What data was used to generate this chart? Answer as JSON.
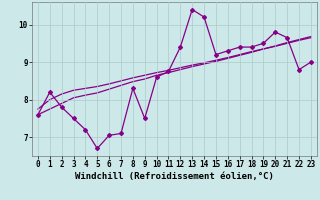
{
  "xlabel": "Windchill (Refroidissement éolien,°C)",
  "bg_color": "#cce8e8",
  "line_color": "#880088",
  "grid_color": "#aacccc",
  "xlim": [
    -0.5,
    23.5
  ],
  "ylim": [
    6.5,
    10.6
  ],
  "xticks": [
    0,
    1,
    2,
    3,
    4,
    5,
    6,
    7,
    8,
    9,
    10,
    11,
    12,
    13,
    14,
    15,
    16,
    17,
    18,
    19,
    20,
    21,
    22,
    23
  ],
  "yticks": [
    7,
    8,
    9,
    10
  ],
  "line1_x": [
    0,
    1,
    2,
    3,
    4,
    5,
    6,
    7,
    8,
    9,
    10,
    11,
    12,
    13,
    14,
    15,
    16,
    17,
    18,
    19,
    20,
    21,
    22,
    23
  ],
  "line1_y": [
    7.6,
    8.2,
    7.8,
    7.5,
    7.2,
    6.7,
    7.05,
    7.1,
    8.3,
    7.5,
    8.6,
    8.75,
    9.4,
    10.4,
    10.2,
    9.2,
    9.3,
    9.4,
    9.4,
    9.5,
    9.8,
    9.65,
    8.8,
    9.0
  ],
  "line2_x": [
    0,
    1,
    2,
    3,
    4,
    5,
    6,
    7,
    8,
    9,
    10,
    11,
    12,
    13,
    14,
    15,
    16,
    17,
    18,
    19,
    20,
    21,
    22,
    23
  ],
  "line2_y": [
    7.75,
    8.0,
    8.15,
    8.25,
    8.3,
    8.35,
    8.42,
    8.5,
    8.58,
    8.65,
    8.72,
    8.78,
    8.85,
    8.92,
    8.98,
    9.05,
    9.12,
    9.2,
    9.28,
    9.35,
    9.42,
    9.5,
    9.58,
    9.65
  ],
  "line3_x": [
    0,
    1,
    2,
    3,
    4,
    5,
    6,
    7,
    8,
    9,
    10,
    11,
    12,
    13,
    14,
    15,
    16,
    17,
    18,
    19,
    20,
    21,
    22,
    23
  ],
  "line3_y": [
    7.6,
    7.75,
    7.9,
    8.05,
    8.12,
    8.18,
    8.28,
    8.38,
    8.48,
    8.55,
    8.65,
    8.72,
    8.8,
    8.88,
    8.95,
    9.02,
    9.1,
    9.18,
    9.26,
    9.35,
    9.43,
    9.52,
    9.6,
    9.68
  ],
  "tick_fontsize": 5.5,
  "label_fontsize": 6.5,
  "marker_size": 2.0,
  "linewidth": 0.9
}
